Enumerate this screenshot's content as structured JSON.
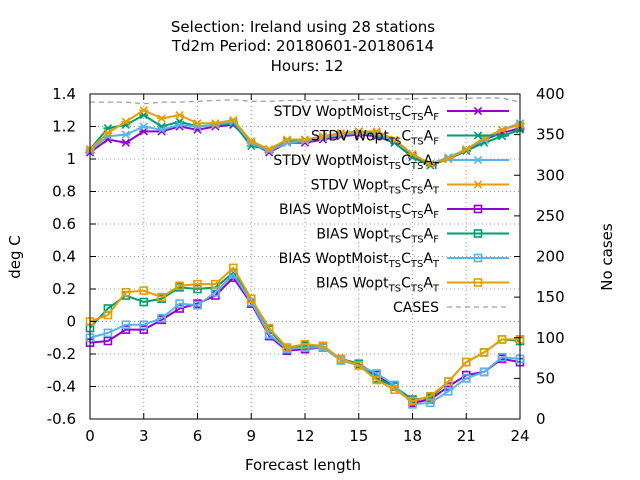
{
  "chart_data": {
    "type": "line",
    "title_lines": [
      "Selection: Ireland using    28 stations",
      "Td2m   Period: 20180601-20180614",
      "Hours:  12"
    ],
    "xlabel": "Forecast length",
    "ylabel": "deg C",
    "y2label": "No cases",
    "xlim": [
      0,
      24
    ],
    "ylim": [
      -0.6,
      1.4
    ],
    "y2lim": [
      0,
      400
    ],
    "xticks": [
      0,
      3,
      6,
      9,
      12,
      15,
      18,
      21,
      24
    ],
    "yticks": [
      -0.6,
      -0.4,
      -0.2,
      0,
      0.2,
      0.4,
      0.6,
      0.8,
      1,
      1.2,
      1.4
    ],
    "ytick_labels": [
      "-0.6",
      "-0.4",
      "-0.2",
      "0",
      "0.2",
      "0.4",
      "0.6",
      "0.8",
      "1",
      "1.2",
      "1.4"
    ],
    "y2ticks": [
      0,
      50,
      100,
      150,
      200,
      250,
      300,
      350,
      400
    ],
    "grid": true,
    "legend_position": "top-right",
    "x": [
      0,
      1,
      2,
      3,
      4,
      5,
      6,
      7,
      8,
      9,
      10,
      11,
      12,
      13,
      14,
      15,
      16,
      17,
      18,
      19,
      20,
      21,
      22,
      23,
      24
    ],
    "series": [
      {
        "name": {
          "prefix": "STDV WoptMoist",
          "sub": "TS",
          "c": "C",
          "sub2": "TS",
          "a": "A",
          "sub3": "F"
        },
        "color": "#9400d3",
        "marker": "asterisk",
        "axis": "y",
        "values": [
          1.04,
          1.12,
          1.1,
          1.17,
          1.17,
          1.2,
          1.18,
          1.2,
          1.21,
          1.1,
          1.04,
          1.1,
          1.1,
          1.12,
          1.14,
          1.15,
          1.14,
          1.1,
          1.02,
          0.97,
          1.0,
          1.05,
          1.12,
          1.16,
          1.19
        ]
      },
      {
        "name": {
          "prefix": "STDV Wopt",
          "sub": "TS",
          "c": "C",
          "sub2": "TS",
          "a": "A",
          "sub3": "F"
        },
        "color": "#009e73",
        "marker": "asterisk",
        "axis": "y",
        "values": [
          1.06,
          1.19,
          1.21,
          1.27,
          1.2,
          1.23,
          1.2,
          1.21,
          1.22,
          1.08,
          1.06,
          1.11,
          1.12,
          1.13,
          1.15,
          1.17,
          1.15,
          1.1,
          1.01,
          0.96,
          1.0,
          1.05,
          1.1,
          1.14,
          1.18
        ]
      },
      {
        "name": {
          "prefix": "STDV WoptMoist",
          "sub": "TS",
          "c": "C",
          "sub2": "TS",
          "a": "A",
          "sub3": "T"
        },
        "color": "#56b4e9",
        "marker": "asterisk",
        "axis": "y",
        "values": [
          1.05,
          1.14,
          1.15,
          1.2,
          1.18,
          1.21,
          1.2,
          1.21,
          1.23,
          1.1,
          1.05,
          1.1,
          1.11,
          1.13,
          1.15,
          1.16,
          1.16,
          1.11,
          1.03,
          0.97,
          1.01,
          1.06,
          1.12,
          1.18,
          1.22
        ]
      },
      {
        "name": {
          "prefix": "STDV Wopt",
          "sub": "TS",
          "c": "C",
          "sub2": "TS",
          "a": "A",
          "sub3": "T"
        },
        "color": "#e69f00",
        "marker": "asterisk",
        "axis": "y",
        "values": [
          1.06,
          1.16,
          1.23,
          1.3,
          1.25,
          1.27,
          1.22,
          1.22,
          1.24,
          1.11,
          1.06,
          1.12,
          1.12,
          1.14,
          1.16,
          1.17,
          1.17,
          1.12,
          1.03,
          0.97,
          1.0,
          1.06,
          1.13,
          1.18,
          1.21
        ]
      },
      {
        "name": {
          "prefix": "BIAS WoptMoist",
          "sub": "TS",
          "c": "C",
          "sub2": "TS",
          "a": "A",
          "sub3": "F"
        },
        "color": "#9400d3",
        "marker": "square",
        "axis": "y",
        "values": [
          -0.13,
          -0.12,
          -0.05,
          -0.05,
          0.01,
          0.08,
          0.11,
          0.16,
          0.27,
          0.11,
          -0.09,
          -0.18,
          -0.17,
          -0.16,
          -0.23,
          -0.26,
          -0.33,
          -0.4,
          -0.5,
          -0.48,
          -0.4,
          -0.33,
          -0.31,
          -0.23,
          -0.25
        ]
      },
      {
        "name": {
          "prefix": "BIAS Wopt",
          "sub": "TS",
          "c": "C",
          "sub2": "TS",
          "a": "A",
          "sub3": "F"
        },
        "color": "#009e73",
        "marker": "square",
        "axis": "y",
        "values": [
          -0.04,
          0.08,
          0.16,
          0.12,
          0.14,
          0.21,
          0.2,
          0.21,
          0.3,
          0.14,
          -0.05,
          -0.17,
          -0.15,
          -0.15,
          -0.23,
          -0.26,
          -0.35,
          -0.4,
          -0.48,
          -0.47,
          -0.37,
          -0.25,
          -0.19,
          -0.11,
          -0.12
        ]
      },
      {
        "name": {
          "prefix": "BIAS WoptMoist",
          "sub": "TS",
          "c": "C",
          "sub2": "TS",
          "a": "A",
          "sub3": "T"
        },
        "color": "#56b4e9",
        "marker": "square",
        "axis": "y",
        "values": [
          -0.1,
          -0.07,
          -0.02,
          -0.02,
          0.02,
          0.11,
          0.1,
          0.18,
          0.29,
          0.12,
          -0.08,
          -0.17,
          -0.16,
          -0.16,
          -0.24,
          -0.27,
          -0.32,
          -0.39,
          -0.51,
          -0.5,
          -0.43,
          -0.35,
          -0.31,
          -0.22,
          -0.23
        ]
      },
      {
        "name": {
          "prefix": "BIAS Wopt",
          "sub": "TS",
          "c": "C",
          "sub2": "TS",
          "a": "A",
          "sub3": "T"
        },
        "color": "#e69f00",
        "marker": "square",
        "axis": "y",
        "values": [
          0.0,
          0.04,
          0.18,
          0.19,
          0.15,
          0.22,
          0.23,
          0.23,
          0.33,
          0.14,
          -0.04,
          -0.16,
          -0.14,
          -0.15,
          -0.23,
          -0.27,
          -0.36,
          -0.42,
          -0.49,
          -0.46,
          -0.37,
          -0.25,
          -0.19,
          -0.11,
          -0.11
        ]
      },
      {
        "name": {
          "prefix": "CASES"
        },
        "color": "#a0a0a0",
        "marker": "none",
        "dashed": true,
        "axis": "y2",
        "values": [
          390,
          390,
          390,
          388,
          390,
          390,
          391,
          392,
          393,
          391,
          391,
          392,
          392,
          392,
          392,
          393,
          394,
          394,
          394,
          395,
          395,
          395,
          395,
          395,
          390
        ]
      }
    ]
  }
}
